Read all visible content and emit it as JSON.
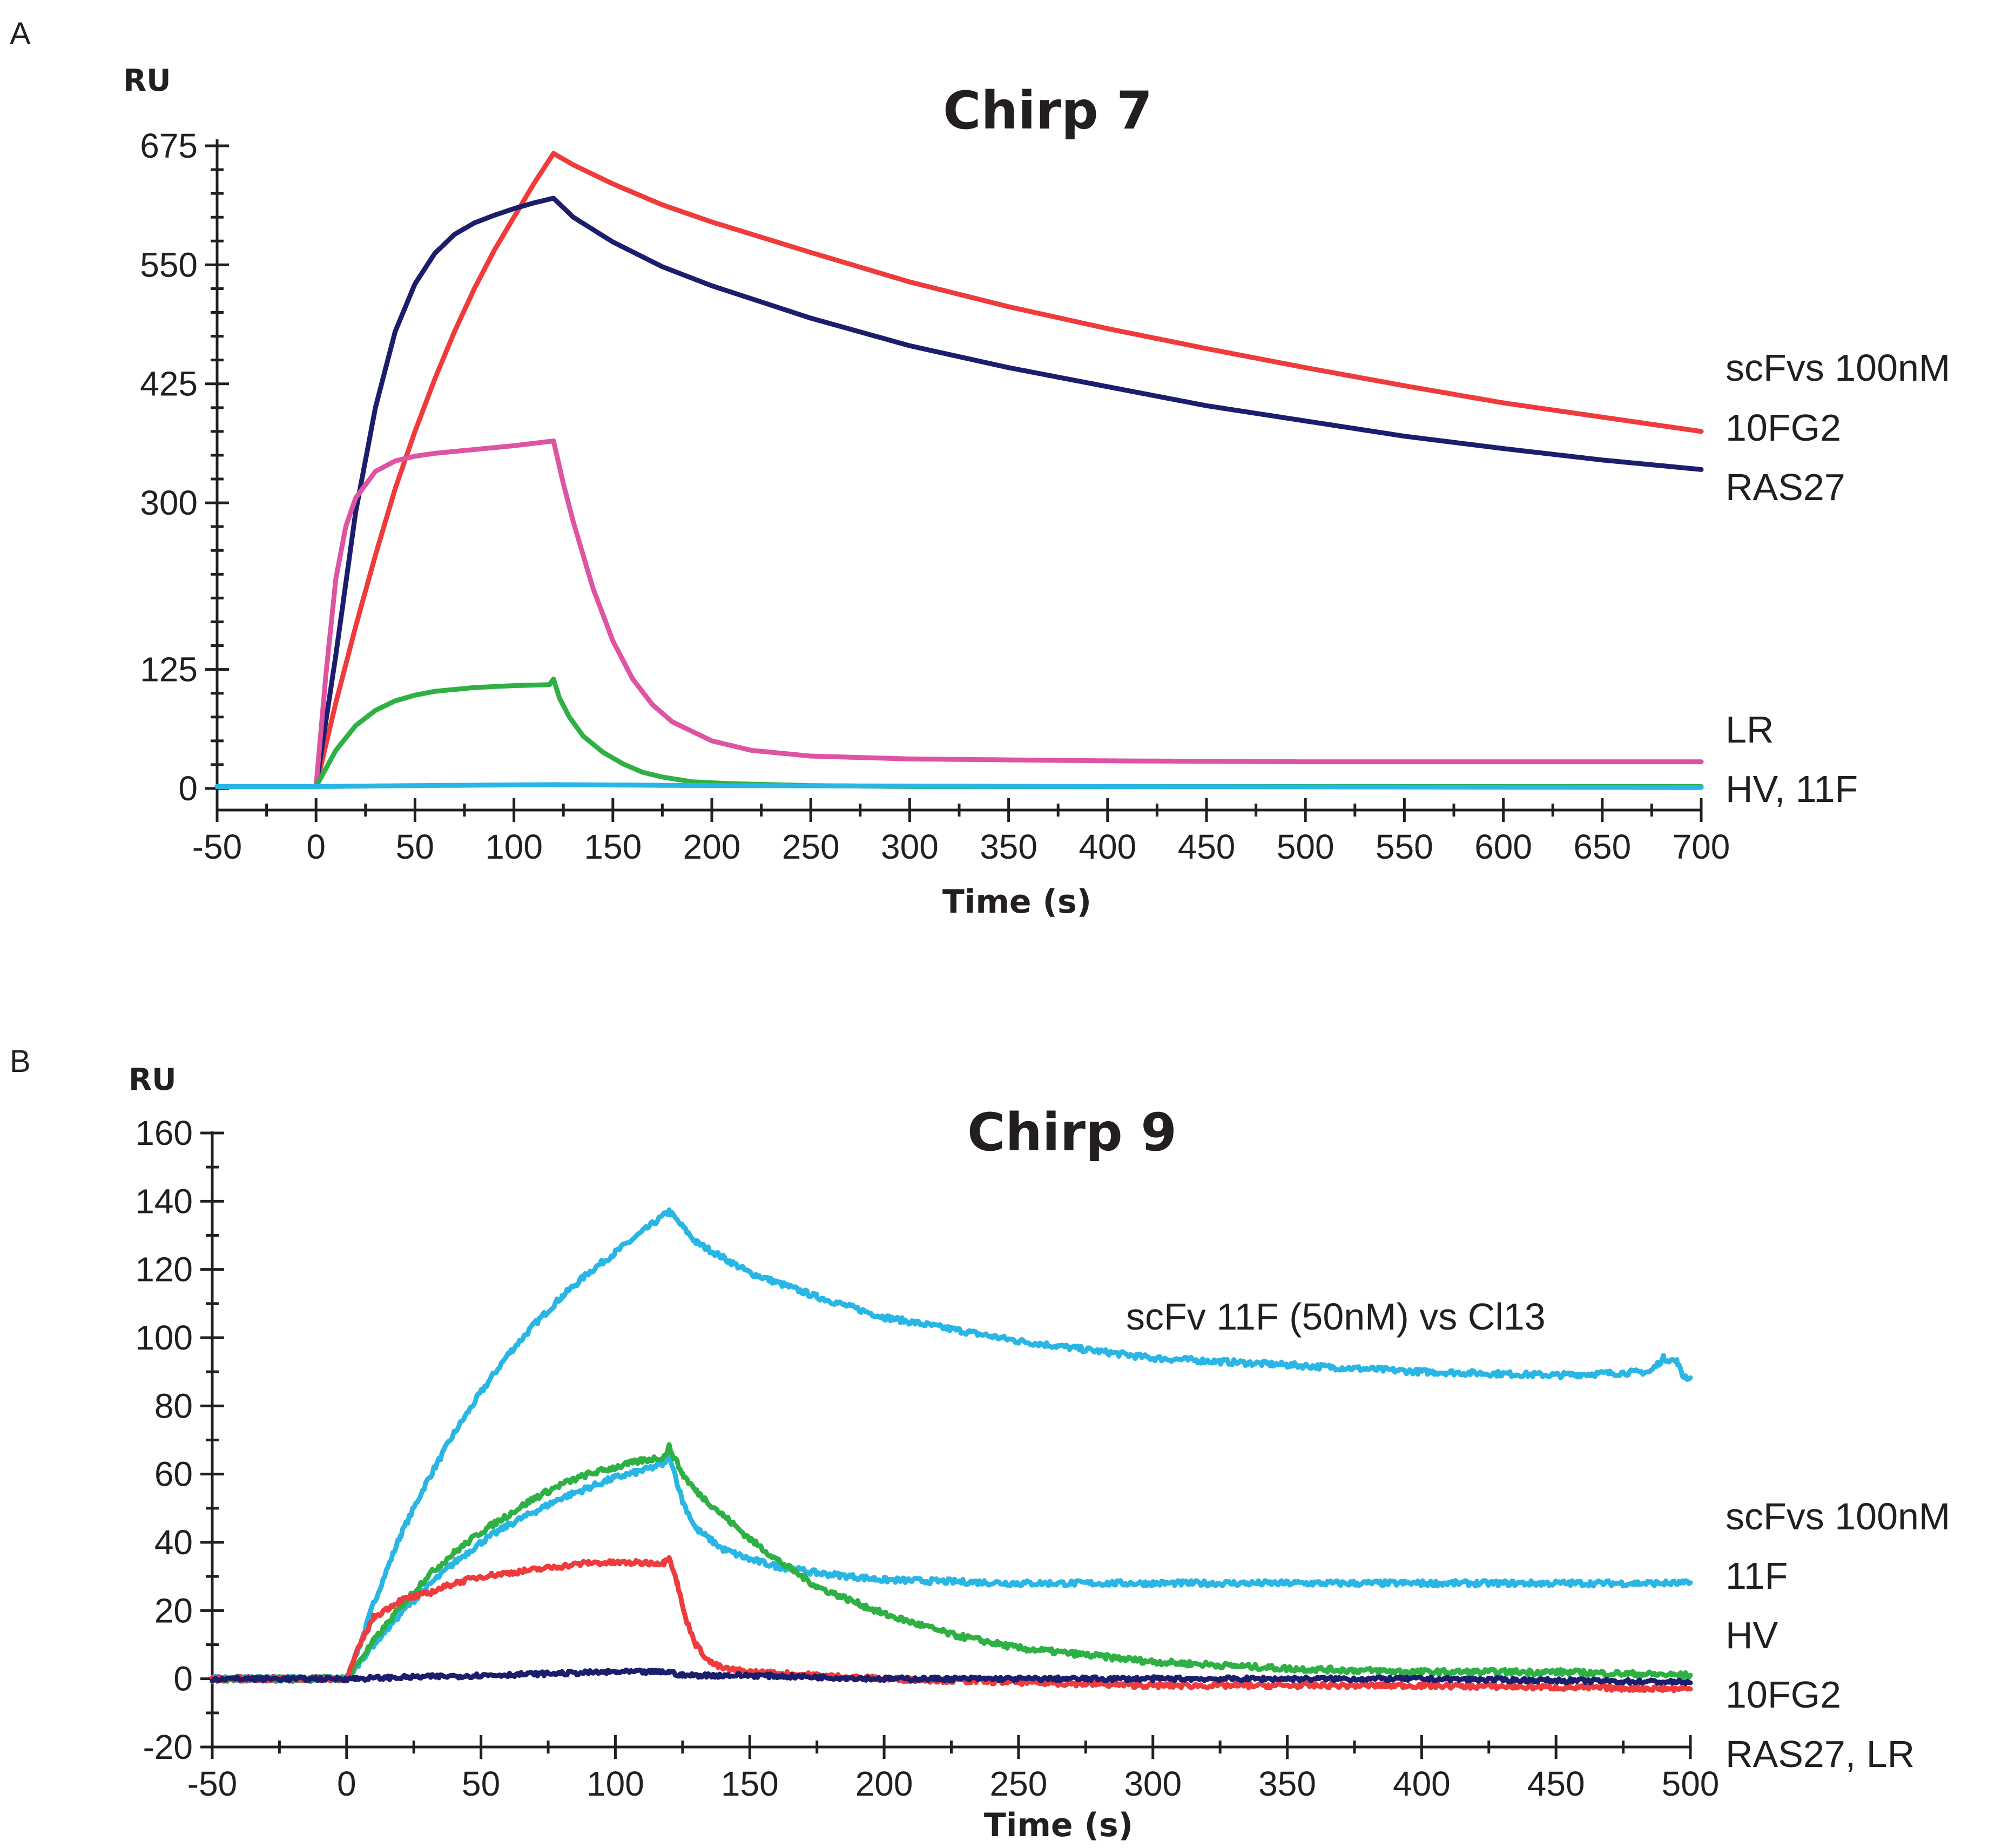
{
  "chart_data": [
    {
      "panel": "A",
      "type": "line",
      "title": "Chirp 7",
      "ylabel": "RU",
      "xlabel": "Time (s)",
      "xlim": [
        -50,
        700
      ],
      "ylim": [
        0,
        675
      ],
      "xticks": [
        -50,
        0,
        50,
        100,
        150,
        200,
        250,
        300,
        350,
        400,
        450,
        500,
        550,
        600,
        650,
        700
      ],
      "yticks": [
        0,
        125,
        300,
        425,
        550,
        675
      ],
      "legend_title": "scFvs 100nM",
      "legend_items": [
        "10FG2",
        "RAS27",
        "LR",
        "HV, 11F"
      ],
      "series": [
        {
          "name": "10FG2",
          "color": "#ef3b3b",
          "noise": 0,
          "x": [
            -50,
            0,
            10,
            20,
            30,
            40,
            50,
            60,
            70,
            80,
            90,
            100,
            110,
            120,
            130,
            150,
            175,
            200,
            250,
            300,
            350,
            400,
            450,
            500,
            550,
            600,
            650,
            700
          ],
          "y": [
            2,
            2,
            90,
            170,
            245,
            315,
            375,
            430,
            480,
            525,
            565,
            600,
            635,
            667,
            655,
            635,
            613,
            595,
            563,
            532,
            506,
            483,
            462,
            442,
            423,
            405,
            390,
            375
          ]
        },
        {
          "name": "RAS27",
          "color": "#1b1e6c",
          "noise": 0,
          "x": [
            -50,
            0,
            10,
            20,
            30,
            40,
            50,
            60,
            70,
            80,
            90,
            100,
            110,
            120,
            130,
            150,
            175,
            200,
            250,
            300,
            350,
            400,
            450,
            500,
            550,
            600,
            650,
            700
          ],
          "y": [
            2,
            2,
            140,
            290,
            400,
            480,
            530,
            562,
            582,
            594,
            602,
            609,
            615,
            620,
            600,
            574,
            548,
            528,
            494,
            465,
            442,
            422,
            402,
            386,
            370,
            357,
            345,
            335
          ]
        },
        {
          "name": "LR",
          "color": "#df53a3",
          "noise": 0,
          "x": [
            -50,
            0,
            5,
            10,
            15,
            20,
            30,
            40,
            50,
            60,
            80,
            100,
            120,
            125,
            130,
            140,
            150,
            160,
            170,
            180,
            200,
            220,
            250,
            300,
            400,
            500,
            600,
            700
          ],
          "y": [
            2,
            2,
            120,
            220,
            275,
            305,
            333,
            344,
            349,
            352,
            356,
            360,
            365,
            320,
            280,
            210,
            155,
            115,
            88,
            70,
            50,
            40,
            34,
            31,
            29,
            28,
            28,
            28
          ]
        },
        {
          "name": "11F",
          "color": "#2fb044",
          "noise": 0,
          "x": [
            -50,
            0,
            10,
            20,
            30,
            40,
            50,
            60,
            80,
            100,
            118,
            120,
            123,
            128,
            135,
            145,
            155,
            165,
            175,
            190,
            210,
            250,
            300,
            400,
            500,
            600,
            700
          ],
          "y": [
            2,
            2,
            40,
            66,
            82,
            92,
            98,
            102,
            106,
            108,
            109,
            115,
            95,
            75,
            55,
            38,
            26,
            17,
            12,
            7,
            5,
            3,
            2,
            2,
            2,
            2,
            2
          ]
        },
        {
          "name": "HV",
          "color": "#29b6e5",
          "noise": 0,
          "x": [
            -50,
            0,
            50,
            120,
            200,
            400,
            700
          ],
          "y": [
            2,
            2,
            3,
            4,
            3,
            2,
            1
          ]
        }
      ]
    },
    {
      "panel": "B",
      "type": "line",
      "title": "Chirp 9",
      "ylabel": "RU",
      "xlabel": "Time (s)",
      "xlim": [
        -50,
        500
      ],
      "ylim": [
        -20,
        160
      ],
      "xticks": [
        -50,
        0,
        50,
        100,
        150,
        200,
        250,
        300,
        350,
        400,
        450,
        500
      ],
      "yticks": [
        -20,
        0,
        20,
        40,
        60,
        80,
        100,
        120,
        140,
        160
      ],
      "annotation": "scFv 11F (50nM)  vs Cl13",
      "legend_title": "scFvs 100nM",
      "legend_items": [
        "11F",
        "HV",
        "10FG2",
        "RAS27, LR"
      ],
      "series": [
        {
          "name": "11F (50nM) vs Cl13",
          "color": "#29b6e5",
          "noise": 0.8,
          "x": [
            -50,
            0,
            5,
            10,
            20,
            30,
            40,
            50,
            60,
            70,
            80,
            90,
            100,
            110,
            120,
            130,
            150,
            175,
            200,
            250,
            300,
            350,
            400,
            450,
            485,
            490,
            495,
            497,
            500
          ],
          "y": [
            0,
            0,
            10,
            22,
            42,
            58,
            72,
            84,
            95,
            104,
            112,
            119,
            125,
            131,
            137,
            128,
            119,
            112,
            106,
            99,
            94,
            92,
            90,
            89,
            90,
            94,
            93,
            89,
            88
          ]
        },
        {
          "name": "11F",
          "color": "#29b6e5",
          "noise": 0.8,
          "x": [
            -50,
            0,
            10,
            20,
            30,
            40,
            50,
            60,
            70,
            80,
            90,
            100,
            110,
            118,
            120,
            125,
            130,
            140,
            150,
            160,
            175,
            200,
            250,
            300,
            400,
            500
          ],
          "y": [
            0,
            0,
            10,
            19,
            27,
            34,
            40,
            45,
            49,
            53,
            56,
            59,
            61,
            63,
            66,
            52,
            44,
            38,
            35,
            33,
            31,
            29,
            28,
            28,
            28,
            28
          ]
        },
        {
          "name": "HV",
          "color": "#2fb044",
          "noise": 0.8,
          "x": [
            -50,
            0,
            10,
            20,
            30,
            40,
            50,
            60,
            70,
            80,
            90,
            100,
            110,
            118,
            120,
            125,
            130,
            140,
            150,
            160,
            175,
            200,
            225,
            250,
            300,
            350,
            400,
            450,
            500
          ],
          "y": [
            0,
            0,
            11,
            21,
            30,
            37,
            43,
            48,
            53,
            57,
            60,
            62,
            64,
            65,
            68,
            60,
            55,
            48,
            41,
            35,
            27,
            19,
            13,
            9,
            5,
            3,
            2,
            2,
            1
          ]
        },
        {
          "name": "10FG2",
          "color": "#ef3b3b",
          "noise": 0.7,
          "x": [
            -50,
            0,
            5,
            10,
            20,
            30,
            40,
            50,
            60,
            70,
            80,
            90,
            100,
            110,
            118,
            120,
            123,
            126,
            130,
            135,
            140,
            150,
            175,
            200,
            250,
            300,
            400,
            500
          ],
          "y": [
            0,
            0,
            10,
            18,
            23,
            25,
            28,
            30,
            31,
            32,
            33,
            34,
            34,
            34,
            34,
            36,
            28,
            18,
            10,
            5,
            3,
            2,
            1,
            0,
            -1,
            -2,
            -2,
            -3
          ]
        },
        {
          "name": "RAS27, LR",
          "color": "#1b1e6c",
          "noise": 0.6,
          "x": [
            -50,
            0,
            50,
            100,
            120,
            125,
            150,
            200,
            300,
            400,
            500
          ],
          "y": [
            0,
            0,
            1,
            2,
            2,
            1,
            1,
            0,
            0,
            0,
            -1
          ]
        }
      ]
    }
  ]
}
